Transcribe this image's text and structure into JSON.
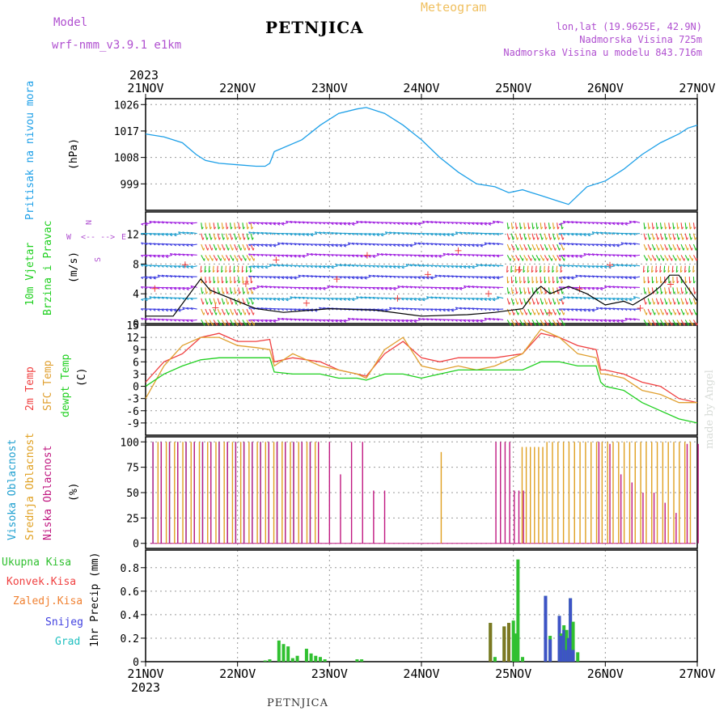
{
  "header": {
    "model_label": "Model",
    "model_name": "wrf-nmm_v3.9.1 e1km",
    "title": "PETNJICA",
    "meteogram_label": "Meteogram",
    "lonlat": "lon,lat (19.9625E, 42.9N)",
    "altitude": "Nadmorska Visina 725m",
    "model_altitude": "Nadmorska Visina u modelu 843.716m",
    "year": "2023"
  },
  "footer": {
    "station": "PETNJICA",
    "credit": "made by Angel"
  },
  "colors": {
    "pressure": "#1ea0e8",
    "temp2m": "#f04040",
    "sfc": "#e0a030",
    "dew": "#20d020",
    "high": "#20a0d0",
    "mid": "#e0a020",
    "low": "#c01880",
    "total": "#30c030",
    "conv": "#f04040",
    "ice": "#f08030",
    "snow": "#4040e0",
    "grad": "#20c0c0",
    "purple": "#b050d0",
    "arrow_label": "#b050d0"
  },
  "x_axis": {
    "ticks": [
      "21NOV",
      "22NOV",
      "23NOV",
      "24NOV",
      "25NOV",
      "26NOV",
      "27NOV"
    ]
  },
  "panels": {
    "pressure": {
      "ylabel_main": "Pritisak na nivou mora",
      "ylabel_unit": "(hPa)",
      "yticks": [
        "1026",
        "1017",
        "1008",
        "999"
      ]
    },
    "wind": {
      "ylabel_main_1": "10m Vjetar",
      "ylabel_main_2": "Brzina i Pravac",
      "ylabel_unit": "(m/s)",
      "compass_n": "N",
      "compass_s": "S",
      "compass_w": "W",
      "compass_e": "E",
      "compass_ns": "<-- -->",
      "yticks": [
        "12",
        "8",
        "4",
        "0"
      ]
    },
    "temperature": {
      "ylabel_1": "2m Temp",
      "ylabel_2": "SFC Temp",
      "ylabel_3": "dewpt Temp",
      "ylabel_unit": "(C)",
      "yticks": [
        "15",
        "12",
        "9",
        "6",
        "3",
        "0",
        "-3",
        "-6",
        "-9"
      ]
    },
    "clouds": {
      "ylabel_1": "Visoka Oblacnost",
      "ylabel_2": "Srednja Oblacnost",
      "ylabel_3": "Niska Oblacnost",
      "ylabel_unit": "(%)",
      "yticks": [
        "100",
        "75",
        "50",
        "25",
        "0"
      ]
    },
    "precip": {
      "legend": [
        "Ukupna Kisa",
        "Konvek.Kisa",
        "Zaledj.Kisa",
        "Snijeg",
        "Grad"
      ],
      "ylabel_unit": "1hr Precip (mm)",
      "yticks": [
        "0.8",
        "0.6",
        "0.4",
        "0.2",
        "0"
      ]
    }
  },
  "chart_data": [
    {
      "type": "line",
      "title": "Pritisak na nivou mora",
      "ylabel": "(hPa)",
      "ylim": [
        990,
        1028
      ],
      "x_days": [
        0,
        0.2,
        0.4,
        0.55,
        0.65,
        0.8,
        1.0,
        1.2,
        1.3,
        1.35,
        1.4,
        1.7,
        1.9,
        2.1,
        2.3,
        2.4,
        2.6,
        2.8,
        3.0,
        3.2,
        3.4,
        3.6,
        3.8,
        3.95,
        4.1,
        4.2,
        4.3,
        4.5,
        4.6,
        4.8,
        5.0,
        5.2,
        5.4,
        5.6,
        5.8,
        5.9,
        6.0
      ],
      "series": [
        {
          "name": "Pritisak na nivou mora",
          "values": [
            1016,
            1015,
            1013,
            1009,
            1007,
            1006,
            1005.5,
            1005,
            1005,
            1006,
            1010,
            1014,
            1019,
            1023,
            1024.5,
            1025,
            1023,
            1019,
            1014,
            1008,
            1003,
            999,
            998,
            996,
            997,
            996,
            995,
            993,
            992,
            998,
            1000,
            1004,
            1009,
            1013,
            1016,
            1018,
            1019
          ]
        }
      ]
    },
    {
      "type": "line",
      "title": "10m Vjetar Brzina i Pravac",
      "ylabel": "(m/s)",
      "ylim": [
        0,
        15
      ],
      "x_days": [
        0,
        0.3,
        0.6,
        0.7,
        0.8,
        1.0,
        1.2,
        1.5,
        2.0,
        2.5,
        3.0,
        3.5,
        3.8,
        4.1,
        4.25,
        4.3,
        4.4,
        4.5,
        4.6,
        4.8,
        5.0,
        5.2,
        5.3,
        5.5,
        5.6,
        5.7,
        5.8,
        6.0
      ],
      "series": [
        {
          "name": "10m Vjetar",
          "values": [
            1,
            1,
            6,
            4.5,
            4,
            3,
            2,
            1.5,
            2,
            1.8,
            1,
            1.2,
            1.5,
            2,
            4.5,
            5,
            4,
            4.5,
            5,
            4,
            2.5,
            3,
            2.5,
            4,
            5,
            6.5,
            6.5,
            3
          ]
        }
      ]
    },
    {
      "type": "line",
      "title": "2m Temp / SFC Temp / dewpt Temp",
      "ylabel": "(C)",
      "ylim": [
        -12,
        15
      ],
      "x_days": [
        0,
        0.2,
        0.4,
        0.6,
        0.8,
        1.0,
        1.2,
        1.35,
        1.4,
        1.6,
        1.9,
        2.1,
        2.3,
        2.4,
        2.6,
        2.8,
        3.0,
        3.2,
        3.4,
        3.6,
        3.8,
        4.1,
        4.3,
        4.5,
        4.7,
        4.9,
        4.95,
        5.0,
        5.2,
        5.4,
        5.6,
        5.8,
        6.0
      ],
      "series": [
        {
          "name": "2m Temp",
          "values": [
            1,
            6,
            8,
            12,
            13,
            11,
            11,
            11.5,
            6,
            7,
            6,
            4,
            3,
            2.5,
            8,
            11,
            7,
            6,
            7,
            7,
            7,
            8,
            13,
            12,
            10,
            9,
            4,
            4,
            3,
            1,
            0,
            -3,
            -4
          ]
        },
        {
          "name": "SFC Temp",
          "values": [
            -3,
            5,
            10,
            12,
            12,
            10,
            9.5,
            9,
            5,
            8,
            5,
            4,
            3,
            2,
            9,
            12,
            5,
            4,
            5,
            4,
            5,
            8,
            14,
            12,
            8,
            7,
            3,
            3,
            2,
            -1,
            -2,
            -4,
            -4
          ]
        },
        {
          "name": "dewpt Temp",
          "values": [
            0,
            3,
            5,
            6.5,
            7,
            7,
            7,
            7,
            3.5,
            3,
            3,
            2,
            2,
            1.5,
            3,
            3,
            2,
            3,
            4,
            4,
            4,
            4,
            6,
            6,
            5,
            5,
            1,
            0,
            -1,
            -4,
            -6,
            -8,
            -9
          ]
        }
      ]
    },
    {
      "type": "bar",
      "title": "Visoka / Srednja / Niska Oblacnost",
      "ylabel": "(%)",
      "ylim": [
        0,
        100
      ],
      "series": [
        {
          "name": "Visoka Oblacnost",
          "spans": [
            [
              0.05,
              1.85,
              100
            ],
            [
              3.9,
              5.15,
              0
            ],
            [
              4.1,
              4.15,
              100
            ]
          ]
        },
        {
          "name": "Srednja Oblacnost",
          "spans": [
            [
              0.05,
              1.85,
              100
            ],
            [
              3.1,
              3.1,
              0
            ],
            [
              4.0,
              4.3,
              95
            ],
            [
              4.35,
              5.95,
              100
            ]
          ]
        },
        {
          "name": "Niska Oblacnost",
          "spans": [
            [
              0.05,
              1.85,
              100
            ],
            [
              1.9,
              2.6,
              100
            ],
            [
              3.8,
              4.2,
              80
            ],
            [
              5.0,
              6.0,
              60
            ]
          ]
        }
      ]
    },
    {
      "type": "bar",
      "title": "1hr Precip",
      "ylabel": "1hr Precip (mm)",
      "ylim": [
        0,
        0.9
      ],
      "x_days": [
        1.3,
        1.35,
        1.45,
        1.5,
        1.55,
        1.6,
        1.65,
        1.75,
        1.8,
        1.85,
        1.9,
        1.95,
        2.3,
        2.35,
        3.75,
        3.8,
        3.9,
        3.95,
        4.0,
        4.03,
        4.05,
        4.1,
        4.35,
        4.4,
        4.5,
        4.52,
        4.55,
        4.58,
        4.6,
        4.62,
        4.65,
        4.7
      ],
      "series": [
        {
          "name": "Ukupna Kisa",
          "values": [
            0.01,
            0.02,
            0.18,
            0.15,
            0.13,
            0.03,
            0.05,
            0.11,
            0.07,
            0.05,
            0.04,
            0.02,
            0.02,
            0.02,
            0.33,
            0.04,
            0.3,
            0.33,
            0.35,
            0.24,
            0.87,
            0.04,
            0.56,
            0.22,
            0.39,
            0.24,
            0.31,
            0.27,
            0.2,
            0.54,
            0.34,
            0.08
          ]
        },
        {
          "name": "Snijeg",
          "values": [
            0,
            0,
            0,
            0,
            0,
            0,
            0,
            0,
            0,
            0,
            0,
            0,
            0,
            0,
            0,
            0,
            0,
            0,
            0,
            0,
            0,
            0,
            0.56,
            0.19,
            0.39,
            0.22,
            0.27,
            0.1,
            0.2,
            0.54,
            0.1,
            0
          ]
        }
      ]
    }
  ]
}
